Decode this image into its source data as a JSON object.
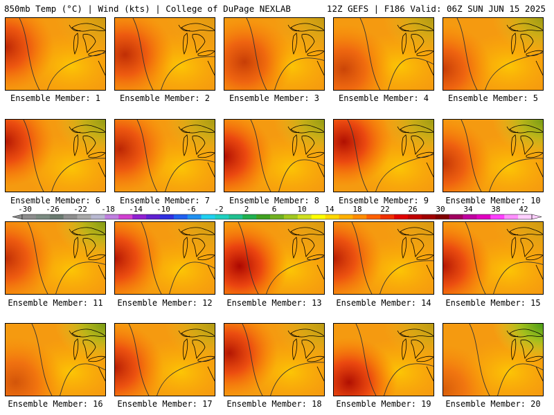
{
  "header": {
    "left": "850mb Temp (°C) | Wind (kts) | College of DuPage NEXLAB",
    "right": "12Z GEFS | F186 Valid: 06Z SUN JUN 15 2025"
  },
  "panel_label_prefix": "Ensemble Member: ",
  "members": [
    {
      "label": "Ensemble Member: 1",
      "hot": 0.75,
      "cool": 0.2,
      "hx": 0.0,
      "hy": 0.4
    },
    {
      "label": "Ensemble Member: 2",
      "hot": 0.7,
      "cool": 0.1,
      "hx": 0.1,
      "hy": 0.5
    },
    {
      "label": "Ensemble Member: 3",
      "hot": 0.6,
      "cool": 0.25,
      "hx": 0.2,
      "hy": 0.6
    },
    {
      "label": "Ensemble Member: 4",
      "hot": 0.55,
      "cool": 0.35,
      "hx": 0.1,
      "hy": 0.7
    },
    {
      "label": "Ensemble Member: 5",
      "hot": 0.6,
      "cool": 0.45,
      "hx": 0.0,
      "hy": 0.7
    },
    {
      "label": "Ensemble Member: 6",
      "hot": 0.85,
      "cool": 0.5,
      "hx": 0.0,
      "hy": 0.3
    },
    {
      "label": "Ensemble Member: 7",
      "hot": 0.75,
      "cool": 0.4,
      "hx": 0.05,
      "hy": 0.4
    },
    {
      "label": "Ensemble Member: 8",
      "hot": 0.9,
      "cool": 0.5,
      "hx": 0.0,
      "hy": 0.5
    },
    {
      "label": "Ensemble Member: 9",
      "hot": 0.9,
      "cool": 0.45,
      "hx": 0.1,
      "hy": 0.3
    },
    {
      "label": "Ensemble Member: 10",
      "hot": 0.65,
      "cool": 0.65,
      "hx": 0.0,
      "hy": 0.6
    },
    {
      "label": "Ensemble Member: 11",
      "hot": 0.7,
      "cool": 0.6,
      "hx": 0.0,
      "hy": 0.5
    },
    {
      "label": "Ensemble Member: 12",
      "hot": 0.85,
      "cool": 0.2,
      "hx": 0.0,
      "hy": 0.5
    },
    {
      "label": "Ensemble Member: 13",
      "hot": 0.95,
      "cool": 0.15,
      "hx": 0.15,
      "hy": 0.6
    },
    {
      "label": "Ensemble Member: 14",
      "hot": 0.8,
      "cool": 0.15,
      "hx": 0.0,
      "hy": 0.5
    },
    {
      "label": "Ensemble Member: 15",
      "hot": 0.85,
      "cool": 0.2,
      "hx": 0.0,
      "hy": 0.6
    },
    {
      "label": "Ensemble Member: 16",
      "hot": 0.45,
      "cool": 0.65,
      "hx": 0.1,
      "hy": 0.8
    },
    {
      "label": "Ensemble Member: 17",
      "hot": 0.8,
      "cool": 0.35,
      "hx": 0.0,
      "hy": 0.6
    },
    {
      "label": "Ensemble Member: 18",
      "hot": 0.85,
      "cool": 0.3,
      "hx": 0.05,
      "hy": 0.4
    },
    {
      "label": "Ensemble Member: 19",
      "hot": 0.9,
      "cool": 0.3,
      "hx": 0.15,
      "hy": 0.8
    },
    {
      "label": "Ensemble Member: 20",
      "hot": 0.4,
      "cool": 0.9,
      "hx": 0.0,
      "hy": 0.9
    }
  ],
  "colorbar": {
    "labels": [
      "-30",
      "-26",
      "-22",
      "-18",
      "-14",
      "-10",
      "-6",
      "-2",
      "2",
      "6",
      "10",
      "14",
      "18",
      "22",
      "26",
      "30",
      "34",
      "38",
      "42"
    ],
    "colors": [
      "#8c8c8c",
      "#7a8a80",
      "#6a7a70",
      "#8e8e8e",
      "#a8a8a8",
      "#b8b8d0",
      "#c080e0",
      "#d040d0",
      "#9020d0",
      "#6020d0",
      "#3030e0",
      "#2060f0",
      "#2090f0",
      "#20d0f0",
      "#20d0c0",
      "#20c090",
      "#20b050",
      "#40a020",
      "#70b020",
      "#a0c820",
      "#d0e020",
      "#ffff00",
      "#ffd800",
      "#ffb000",
      "#ff8c00",
      "#ff6000",
      "#f03000",
      "#e00000",
      "#c00000",
      "#a00000",
      "#800000",
      "#a00060",
      "#c000a0",
      "#e000c0",
      "#ff40ff",
      "#ff90ff",
      "#ffd0ff"
    ]
  }
}
